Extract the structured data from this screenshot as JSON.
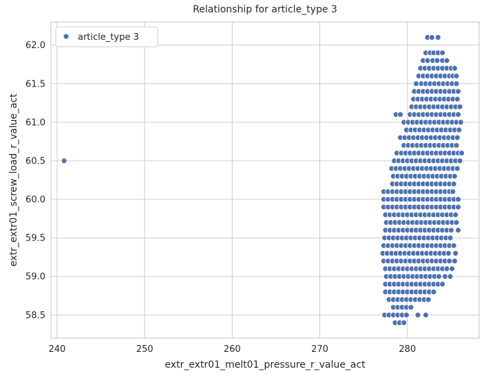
{
  "colors": {
    "series": "#4c72b0",
    "grid": "#cccccc",
    "frame": "#cccccc"
  },
  "chart_data": {
    "type": "scatter",
    "title": "Relationship for article_type 3",
    "xlabel": "extr_extr01_melt01_pressure_r_value_act",
    "ylabel": "extr_extr01_screw_load_r_value_act",
    "xlim": [
      239.3,
      288.2
    ],
    "ylim": [
      58.2,
      62.3
    ],
    "xticks": [
      "240",
      "250",
      "260",
      "270",
      "280"
    ],
    "xtick_values": [
      240,
      250,
      260,
      270,
      280
    ],
    "yticks": [
      "58.5",
      "59.0",
      "59.5",
      "60.0",
      "60.5",
      "61.0",
      "61.5",
      "62.0"
    ],
    "ytick_values": [
      58.5,
      59.0,
      59.5,
      60.0,
      60.5,
      61.0,
      61.5,
      62.0
    ],
    "grid": true,
    "legend_position": "top-left",
    "series": [
      {
        "name": "article_type 3",
        "y_step": 0.1,
        "isolated_points": [
          [
            240.8,
            60.5
          ]
        ],
        "rows": [
          {
            "y": 62.1,
            "x": [
              282.3,
              282.8,
              283.5
            ]
          },
          {
            "y": 61.9,
            "x": [
              282.1,
              282.6,
              283.0,
              283.5,
              284.0
            ]
          },
          {
            "y": 61.8,
            "x": [
              281.8,
              282.3,
              282.9,
              283.4,
              284.0,
              284.5
            ]
          },
          {
            "y": 61.7,
            "x": [
              281.5,
              282.0,
              282.5,
              283.0,
              283.5,
              284.0,
              284.5,
              285.0,
              285.4
            ]
          },
          {
            "y": 61.6,
            "x": [
              281.3,
              281.8,
              282.3,
              282.8,
              283.3,
              283.8,
              284.3,
              284.8,
              285.2,
              285.6
            ]
          },
          {
            "y": 61.5,
            "x": [
              281.0,
              281.6,
              282.1,
              282.6,
              283.1,
              283.6,
              284.1,
              284.6,
              285.1,
              285.6
            ]
          },
          {
            "y": 61.4,
            "x": [
              280.8,
              281.3,
              281.8,
              282.3,
              282.8,
              283.3,
              283.8,
              284.3,
              284.8,
              285.3,
              285.8
            ]
          },
          {
            "y": 61.3,
            "x": [
              280.7,
              281.2,
              281.7,
              282.2,
              282.7,
              283.2,
              283.7,
              284.2,
              284.7,
              285.2,
              285.7
            ]
          },
          {
            "y": 61.2,
            "x": [
              280.5,
              281.0,
              281.5,
              282.0,
              282.5,
              283.0,
              283.5,
              284.0,
              284.5,
              285.0,
              285.5,
              286.0
            ]
          },
          {
            "y": 61.1,
            "x": [
              278.7,
              279.2,
              280.3,
              280.8,
              281.3,
              281.8,
              282.3,
              282.8,
              283.3,
              283.8,
              284.3,
              284.8,
              285.3,
              285.8
            ]
          },
          {
            "y": 61.0,
            "x": [
              279.6,
              280.1,
              280.6,
              281.1,
              281.6,
              282.1,
              282.6,
              283.1,
              283.6,
              284.1,
              284.6,
              285.1,
              285.6,
              286.1
            ]
          },
          {
            "y": 60.9,
            "x": [
              279.9,
              280.4,
              280.9,
              281.4,
              281.9,
              282.4,
              282.9,
              283.4,
              283.9,
              284.4,
              284.9,
              285.4,
              285.9
            ]
          },
          {
            "y": 60.8,
            "x": [
              279.2,
              279.7,
              280.2,
              280.7,
              281.2,
              281.7,
              282.2,
              282.7,
              283.2,
              283.7,
              284.2,
              284.7,
              285.2,
              285.7
            ]
          },
          {
            "y": 60.7,
            "x": [
              279.6,
              280.1,
              280.6,
              281.1,
              281.6,
              282.1,
              282.6,
              283.1,
              283.6,
              284.1,
              284.6,
              285.1,
              285.6
            ]
          },
          {
            "y": 60.6,
            "x": [
              278.8,
              279.3,
              279.8,
              280.3,
              280.8,
              281.3,
              281.8,
              282.3,
              282.8,
              283.3,
              283.8,
              284.3,
              284.8,
              285.3,
              285.8,
              286.2
            ]
          },
          {
            "y": 60.5,
            "x": [
              278.5,
              279.0,
              279.5,
              280.0,
              280.5,
              281.0,
              281.5,
              282.0,
              282.5,
              283.0,
              283.5,
              284.0,
              284.5,
              285.0,
              285.5,
              286.0
            ]
          },
          {
            "y": 60.4,
            "x": [
              278.2,
              278.7,
              279.2,
              279.7,
              280.2,
              280.7,
              281.2,
              281.7,
              282.2,
              282.7,
              283.2,
              283.7,
              284.2,
              284.7,
              285.2,
              285.7
            ]
          },
          {
            "y": 60.3,
            "x": [
              278.4,
              278.9,
              279.4,
              279.9,
              280.4,
              280.9,
              281.4,
              281.9,
              282.4,
              282.9,
              283.4,
              283.9,
              284.4,
              284.9,
              285.4
            ]
          },
          {
            "y": 60.2,
            "x": [
              278.3,
              278.8,
              279.3,
              279.8,
              280.3,
              280.8,
              281.3,
              281.8,
              282.3,
              282.8,
              283.3,
              283.8,
              284.3,
              284.8,
              285.3
            ]
          },
          {
            "y": 60.1,
            "x": [
              277.3,
              277.8,
              278.3,
              278.8,
              279.3,
              279.8,
              280.3,
              280.8,
              281.3,
              281.8,
              282.3,
              282.8,
              283.3,
              283.8,
              284.3,
              284.8,
              285.2
            ]
          },
          {
            "y": 60.0,
            "x": [
              277.3,
              277.8,
              278.3,
              278.8,
              279.3,
              279.8,
              280.3,
              280.8,
              281.3,
              281.8,
              282.3,
              282.8,
              283.3,
              283.8,
              284.3,
              284.8,
              285.3,
              285.8
            ]
          },
          {
            "y": 59.9,
            "x": [
              277.3,
              277.8,
              278.3,
              278.8,
              279.3,
              279.8,
              280.3,
              280.8,
              281.3,
              281.8,
              282.3,
              282.8,
              283.3,
              283.8,
              284.3,
              284.8,
              285.3,
              285.8
            ]
          },
          {
            "y": 59.8,
            "x": [
              277.5,
              278.0,
              278.5,
              279.0,
              279.5,
              280.0,
              280.5,
              281.0,
              281.5,
              282.0,
              282.5,
              283.0,
              283.5,
              284.0,
              284.5,
              285.0,
              285.5
            ]
          },
          {
            "y": 59.7,
            "x": [
              277.6,
              278.1,
              278.6,
              279.1,
              279.6,
              280.1,
              280.6,
              281.1,
              281.6,
              282.1,
              282.6,
              283.1,
              283.6,
              284.1,
              284.6,
              285.1,
              285.6
            ]
          },
          {
            "y": 59.6,
            "x": [
              277.5,
              278.0,
              278.5,
              279.0,
              279.5,
              280.0,
              280.5,
              281.0,
              281.5,
              282.0,
              282.5,
              283.0,
              283.5,
              284.0,
              284.5,
              285.0,
              285.8
            ]
          },
          {
            "y": 59.5,
            "x": [
              277.4,
              277.9,
              278.4,
              278.9,
              279.4,
              279.9,
              280.4,
              280.9,
              281.4,
              281.9,
              282.4,
              282.9,
              283.4,
              283.9,
              284.4,
              284.9
            ]
          },
          {
            "y": 59.4,
            "x": [
              277.3,
              277.8,
              278.3,
              278.8,
              279.3,
              279.8,
              280.3,
              280.8,
              281.3,
              281.8,
              282.3,
              282.8,
              283.3,
              283.8,
              284.3,
              284.8,
              285.3
            ]
          },
          {
            "y": 59.3,
            "x": [
              277.2,
              277.7,
              278.2,
              278.7,
              279.2,
              279.7,
              280.2,
              280.7,
              281.2,
              281.7,
              282.2,
              282.7,
              283.2,
              283.7,
              284.2,
              284.7,
              285.5
            ]
          },
          {
            "y": 59.2,
            "x": [
              277.3,
              277.8,
              278.3,
              278.8,
              279.3,
              279.8,
              280.3,
              280.8,
              281.3,
              281.8,
              282.3,
              282.8,
              283.3,
              283.8,
              284.3,
              284.8,
              285.4
            ]
          },
          {
            "y": 59.1,
            "x": [
              277.5,
              278.0,
              278.5,
              279.0,
              279.5,
              280.0,
              280.5,
              281.0,
              281.5,
              282.0,
              282.5,
              283.0,
              283.5,
              284.0,
              284.5,
              285.1
            ]
          },
          {
            "y": 59.0,
            "x": [
              277.6,
              278.1,
              278.6,
              279.1,
              279.6,
              280.1,
              280.6,
              281.1,
              281.6,
              282.1,
              282.6,
              283.1,
              283.6,
              284.3,
              284.9
            ]
          },
          {
            "y": 58.9,
            "x": [
              277.5,
              278.0,
              278.5,
              279.0,
              279.5,
              280.0,
              280.5,
              281.0,
              281.5,
              282.0,
              282.5,
              283.0,
              283.5,
              284.0
            ]
          },
          {
            "y": 58.8,
            "x": [
              277.5,
              278.0,
              278.5,
              279.0,
              279.5,
              280.0,
              280.5,
              281.0,
              281.5,
              282.0,
              282.5,
              283.0
            ]
          },
          {
            "y": 58.7,
            "x": [
              277.9,
              278.4,
              278.9,
              279.4,
              279.9,
              280.4,
              280.9,
              281.4,
              281.9,
              282.4
            ]
          },
          {
            "y": 58.6,
            "x": [
              278.4,
              278.9,
              279.4,
              279.9,
              280.4
            ]
          },
          {
            "y": 58.5,
            "x": [
              277.4,
              277.9,
              278.4,
              278.9,
              279.4,
              279.9,
              281.2,
              282.1
            ]
          },
          {
            "y": 58.4,
            "x": [
              278.6,
              279.1,
              279.6
            ]
          }
        ]
      }
    ]
  }
}
